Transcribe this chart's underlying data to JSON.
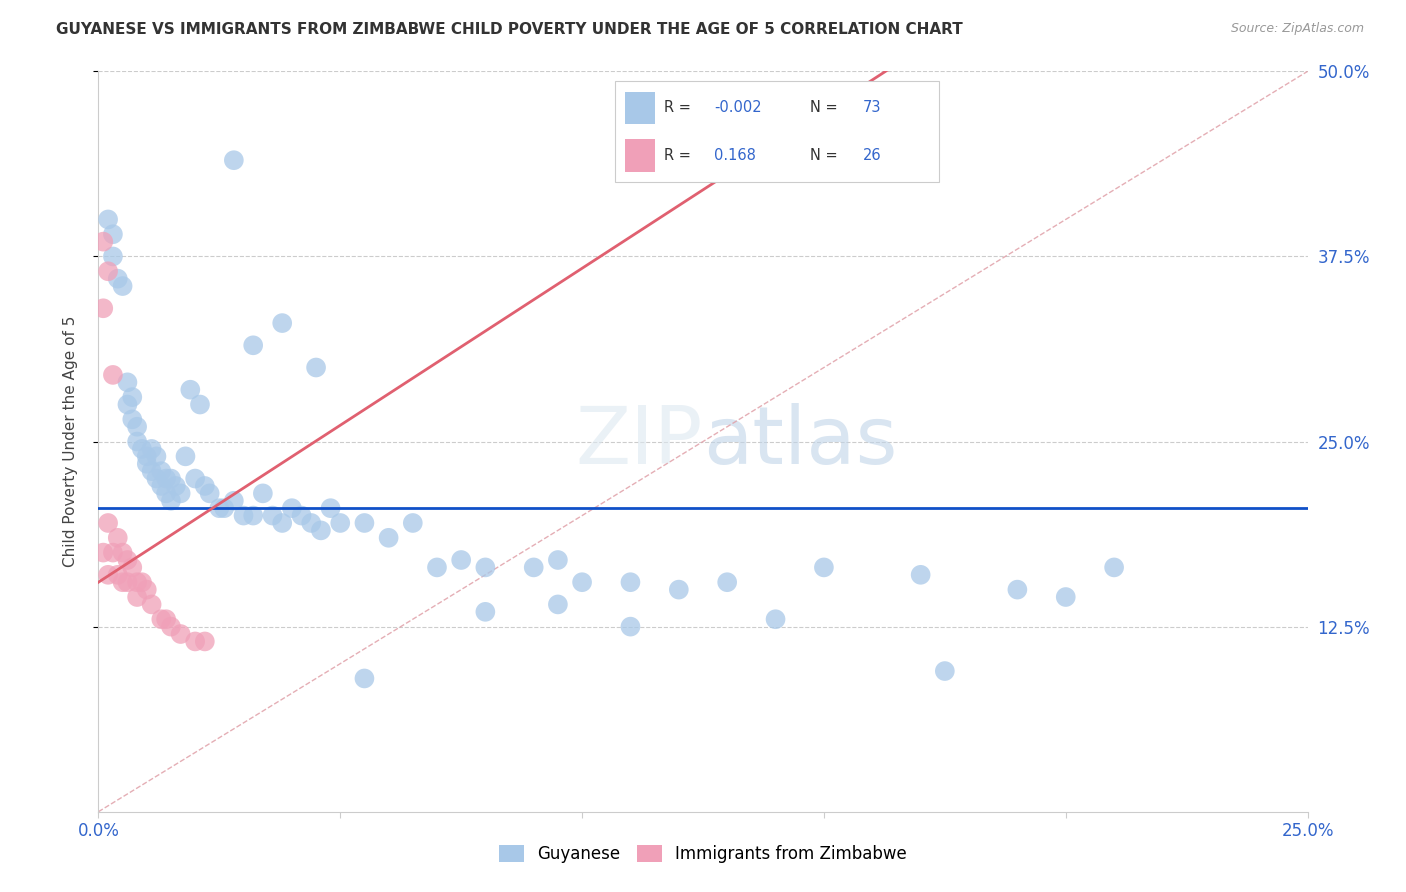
{
  "title": "GUYANESE VS IMMIGRANTS FROM ZIMBABWE CHILD POVERTY UNDER THE AGE OF 5 CORRELATION CHART",
  "source": "Source: ZipAtlas.com",
  "ylabel": "Child Poverty Under the Age of 5",
  "xlim": [
    0.0,
    0.25
  ],
  "ylim": [
    0.0,
    0.5
  ],
  "ytick_positions": [
    0.125,
    0.25,
    0.375,
    0.5
  ],
  "ytick_labels": [
    "12.5%",
    "25.0%",
    "37.5%",
    "50.0%"
  ],
  "color_blue": "#a8c8e8",
  "color_pink": "#f0a0b8",
  "color_blue_line": "#1050c8",
  "color_pink_line": "#e06070",
  "color_dashed": "#e0a0a8",
  "blue_hline_y": 0.205,
  "pink_line_x0": 0.0,
  "pink_line_x1": 0.025,
  "pink_line_y0": 0.155,
  "pink_line_y1": 0.208,
  "guyanese_x": [
    0.002,
    0.003,
    0.003,
    0.004,
    0.005,
    0.006,
    0.006,
    0.007,
    0.007,
    0.008,
    0.008,
    0.009,
    0.01,
    0.01,
    0.011,
    0.011,
    0.012,
    0.012,
    0.013,
    0.013,
    0.014,
    0.014,
    0.015,
    0.015,
    0.016,
    0.017,
    0.018,
    0.019,
    0.02,
    0.021,
    0.022,
    0.023,
    0.025,
    0.026,
    0.028,
    0.03,
    0.032,
    0.034,
    0.036,
    0.038,
    0.04,
    0.042,
    0.044,
    0.046,
    0.048,
    0.05,
    0.055,
    0.06,
    0.065,
    0.07,
    0.075,
    0.08,
    0.09,
    0.095,
    0.1,
    0.11,
    0.12,
    0.13,
    0.15,
    0.17,
    0.19,
    0.2,
    0.21,
    0.028,
    0.032,
    0.038,
    0.045,
    0.055,
    0.08,
    0.095,
    0.11,
    0.14,
    0.175
  ],
  "guyanese_y": [
    0.4,
    0.39,
    0.375,
    0.36,
    0.355,
    0.29,
    0.275,
    0.28,
    0.265,
    0.26,
    0.25,
    0.245,
    0.24,
    0.235,
    0.245,
    0.23,
    0.24,
    0.225,
    0.23,
    0.22,
    0.225,
    0.215,
    0.225,
    0.21,
    0.22,
    0.215,
    0.24,
    0.285,
    0.225,
    0.275,
    0.22,
    0.215,
    0.205,
    0.205,
    0.21,
    0.2,
    0.2,
    0.215,
    0.2,
    0.195,
    0.205,
    0.2,
    0.195,
    0.19,
    0.205,
    0.195,
    0.195,
    0.185,
    0.195,
    0.165,
    0.17,
    0.165,
    0.165,
    0.17,
    0.155,
    0.155,
    0.15,
    0.155,
    0.165,
    0.16,
    0.15,
    0.145,
    0.165,
    0.44,
    0.315,
    0.33,
    0.3,
    0.09,
    0.135,
    0.14,
    0.125,
    0.13,
    0.095
  ],
  "zimbabwe_x": [
    0.001,
    0.001,
    0.001,
    0.002,
    0.002,
    0.002,
    0.003,
    0.003,
    0.004,
    0.004,
    0.005,
    0.005,
    0.006,
    0.006,
    0.007,
    0.008,
    0.008,
    0.009,
    0.01,
    0.011,
    0.013,
    0.014,
    0.015,
    0.017,
    0.02,
    0.022
  ],
  "zimbabwe_y": [
    0.385,
    0.34,
    0.175,
    0.365,
    0.195,
    0.16,
    0.295,
    0.175,
    0.185,
    0.16,
    0.175,
    0.155,
    0.17,
    0.155,
    0.165,
    0.145,
    0.155,
    0.155,
    0.15,
    0.14,
    0.13,
    0.13,
    0.125,
    0.12,
    0.115,
    0.115
  ]
}
